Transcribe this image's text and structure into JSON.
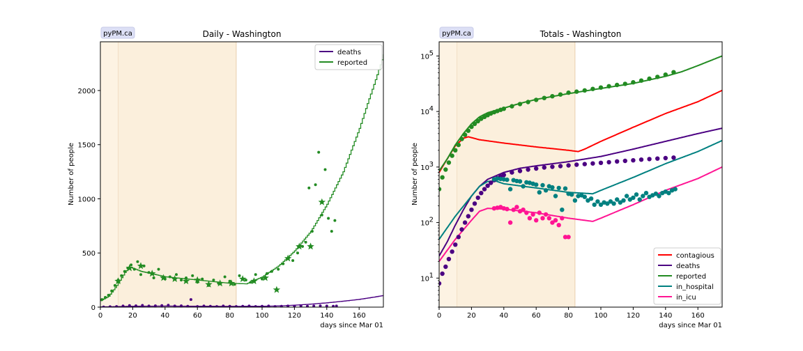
{
  "chart_data": [
    {
      "type": "line",
      "title": "Daily - Washington",
      "badge": "pyPM.ca",
      "xlabel": "days since Mar 01",
      "ylabel": "Number of people",
      "xlim": [
        0,
        175
      ],
      "ylim": [
        0,
        2450
      ],
      "xticks": [
        0,
        20,
        40,
        60,
        80,
        100,
        120,
        140,
        160
      ],
      "yticks": [
        0,
        500,
        1000,
        1500,
        2000
      ],
      "grid": false,
      "legend_position": "top-right",
      "shaded_regions": [
        {
          "from": 0,
          "to": 11,
          "color": "#fdf3e3"
        },
        {
          "from": 11,
          "to": 84,
          "color": "#fbefdc"
        }
      ],
      "colors": {
        "deaths": "#4b0082",
        "reported": "#228b22"
      },
      "series": [
        {
          "name": "deaths",
          "kind": "model-step",
          "x": [
            0,
            20,
            40,
            60,
            80,
            100,
            110,
            120,
            130,
            140,
            150,
            160,
            170,
            175
          ],
          "values": [
            2,
            8,
            10,
            8,
            7,
            8,
            11,
            18,
            28,
            40,
            55,
            72,
            95,
            108
          ]
        },
        {
          "name": "reported",
          "kind": "model-step",
          "x": [
            0,
            5,
            10,
            15,
            18,
            25,
            40,
            60,
            80,
            90,
            100,
            110,
            120,
            130,
            140,
            150,
            160,
            165,
            170,
            175
          ],
          "values": [
            60,
            100,
            200,
            320,
            370,
            330,
            280,
            250,
            220,
            215,
            280,
            380,
            520,
            700,
            950,
            1250,
            1650,
            1880,
            2100,
            2330
          ]
        },
        {
          "name": "reported-daily",
          "kind": "points",
          "x": [
            1,
            3,
            5,
            7,
            9,
            11,
            13,
            15,
            17,
            19,
            21,
            23,
            25,
            27,
            30,
            33,
            36,
            40,
            43,
            47,
            50,
            53,
            57,
            60,
            63,
            67,
            70,
            73,
            77,
            80,
            83,
            86,
            90,
            93,
            96,
            100,
            103,
            106,
            110,
            113,
            116,
            119,
            122,
            125,
            127,
            129,
            131,
            133,
            135,
            137,
            139,
            141,
            143,
            145
          ],
          "values": [
            70,
            90,
            110,
            150,
            200,
            250,
            290,
            330,
            360,
            390,
            350,
            420,
            300,
            380,
            320,
            270,
            350,
            260,
            280,
            300,
            250,
            270,
            290,
            230,
            260,
            200,
            250,
            220,
            280,
            240,
            210,
            290,
            250,
            230,
            300,
            260,
            310,
            330,
            350,
            400,
            450,
            430,
            500,
            560,
            600,
            1100,
            700,
            1130,
            1430,
            850,
            1270,
            820,
            700,
            800
          ]
        },
        {
          "name": "reported-weekly",
          "kind": "stars",
          "x": [
            11,
            18,
            25,
            32,
            39,
            46,
            53,
            60,
            67,
            74,
            81,
            88,
            95,
            102,
            109,
            116,
            123,
            130,
            137
          ],
          "values": [
            240,
            360,
            380,
            310,
            270,
            260,
            240,
            250,
            210,
            220,
            220,
            260,
            240,
            270,
            160,
            450,
            560,
            560,
            970
          ]
        },
        {
          "name": "deaths-daily",
          "kind": "points",
          "x": [
            2,
            6,
            10,
            14,
            18,
            22,
            26,
            30,
            34,
            38,
            42,
            46,
            50,
            54,
            56,
            60,
            64,
            68,
            72,
            76,
            80,
            84,
            88,
            92,
            96,
            100,
            104,
            108,
            112,
            116,
            120,
            124,
            128,
            132,
            136,
            140,
            144,
            146
          ],
          "values": [
            2,
            4,
            6,
            10,
            14,
            12,
            16,
            10,
            12,
            14,
            18,
            10,
            12,
            8,
            70,
            6,
            10,
            8,
            6,
            10,
            8,
            6,
            8,
            10,
            6,
            8,
            10,
            6,
            8,
            10,
            8,
            10,
            8,
            10,
            12,
            10,
            8,
            10
          ]
        }
      ]
    },
    {
      "type": "line",
      "title": "Totals - Washington",
      "badge": "pyPM.ca",
      "xlabel": "days since Mar 01",
      "ylabel": "Number of people",
      "yscale": "log",
      "xlim": [
        0,
        175
      ],
      "ylim": [
        3,
        180000
      ],
      "xticks": [
        0,
        20,
        40,
        60,
        80,
        100,
        120,
        140,
        160
      ],
      "yticks": [
        10,
        100,
        1000,
        10000,
        100000
      ],
      "ytick_labels": [
        {
          "base": "10",
          "exp": "1"
        },
        {
          "base": "10",
          "exp": "2"
        },
        {
          "base": "10",
          "exp": "3"
        },
        {
          "base": "10",
          "exp": "4"
        },
        {
          "base": "10",
          "exp": "5"
        }
      ],
      "grid": false,
      "legend_position": "bottom-right",
      "shaded_regions": [
        {
          "from": 0,
          "to": 11,
          "color": "#fdf3e3"
        },
        {
          "from": 11,
          "to": 84,
          "color": "#fbefdc"
        }
      ],
      "colors": {
        "contagious": "#ff0000",
        "deaths": "#4b0082",
        "reported": "#228b22",
        "in_hospital": "#008080",
        "in_icu": "#ff1493"
      },
      "series": [
        {
          "name": "contagious",
          "kind": "model",
          "x": [
            0,
            5,
            10,
            15,
            18,
            25,
            40,
            60,
            80,
            86,
            90,
            100,
            120,
            140,
            160,
            175
          ],
          "values": [
            800,
            1400,
            2400,
            3300,
            3500,
            3100,
            2700,
            2300,
            2000,
            1900,
            2100,
            2900,
            5200,
            9200,
            15000,
            24000
          ]
        },
        {
          "name": "deaths",
          "kind": "model",
          "x": [
            0,
            5,
            10,
            15,
            20,
            25,
            30,
            40,
            50,
            60,
            80,
            100,
            120,
            140,
            160,
            175
          ],
          "values": [
            25,
            45,
            90,
            170,
            300,
            450,
            600,
            800,
            950,
            1050,
            1250,
            1550,
            2100,
            2900,
            4000,
            5000
          ]
        },
        {
          "name": "reported",
          "kind": "model",
          "x": [
            0,
            5,
            10,
            15,
            20,
            25,
            30,
            40,
            50,
            60,
            80,
            100,
            120,
            140,
            150,
            160,
            175
          ],
          "values": [
            850,
            1400,
            2500,
            4000,
            6000,
            8000,
            9500,
            11500,
            14000,
            16500,
            21000,
            26000,
            32000,
            43000,
            52000,
            67000,
            100000
          ]
        },
        {
          "name": "in_hospital",
          "kind": "model",
          "x": [
            0,
            10,
            20,
            25,
            30,
            35,
            40,
            60,
            80,
            95,
            100,
            120,
            140,
            160,
            175
          ],
          "values": [
            50,
            130,
            300,
            450,
            550,
            560,
            500,
            420,
            350,
            330,
            380,
            650,
            1150,
            1900,
            3000
          ]
        },
        {
          "name": "in_icu",
          "kind": "model",
          "x": [
            0,
            10,
            20,
            25,
            30,
            40,
            60,
            80,
            95,
            100,
            120,
            140,
            160,
            175
          ],
          "values": [
            20,
            50,
            110,
            160,
            180,
            175,
            150,
            120,
            105,
            120,
            210,
            380,
            620,
            1000
          ]
        },
        {
          "name": "reported-data",
          "kind": "points",
          "x": [
            0,
            2,
            4,
            6,
            8,
            10,
            12,
            14,
            16,
            18,
            20,
            22,
            24,
            26,
            28,
            30,
            32,
            34,
            36,
            38,
            40,
            45,
            50,
            55,
            60,
            65,
            70,
            75,
            80,
            85,
            90,
            95,
            100,
            105,
            110,
            115,
            120,
            125,
            130,
            135,
            140,
            145
          ],
          "values": [
            400,
            650,
            900,
            1200,
            1600,
            2000,
            2500,
            3200,
            3800,
            4500,
            5300,
            6000,
            6700,
            7400,
            8000,
            8600,
            9200,
            9700,
            10200,
            10700,
            11200,
            12400,
            13600,
            14800,
            16200,
            17500,
            18800,
            20200,
            21800,
            22800,
            24000,
            25500,
            27000,
            28500,
            30000,
            31500,
            33500,
            36000,
            39000,
            42000,
            46000,
            51000
          ]
        },
        {
          "name": "deaths-data",
          "kind": "points",
          "x": [
            0,
            2,
            4,
            6,
            8,
            10,
            12,
            14,
            16,
            18,
            20,
            22,
            24,
            26,
            28,
            30,
            32,
            34,
            36,
            38,
            40,
            45,
            50,
            55,
            60,
            65,
            70,
            75,
            80,
            85,
            90,
            95,
            100,
            105,
            110,
            115,
            120,
            125,
            130,
            135,
            140,
            145
          ],
          "values": [
            8,
            12,
            16,
            22,
            30,
            40,
            55,
            75,
            100,
            130,
            170,
            220,
            280,
            340,
            400,
            460,
            520,
            580,
            630,
            680,
            720,
            800,
            850,
            900,
            940,
            980,
            1010,
            1040,
            1070,
            1100,
            1130,
            1160,
            1190,
            1220,
            1260,
            1290,
            1320,
            1360,
            1390,
            1420,
            1450,
            1480
          ]
        },
        {
          "name": "in_hospital-data",
          "kind": "points",
          "x": [
            34,
            36,
            38,
            40,
            42,
            44,
            46,
            48,
            50,
            52,
            54,
            56,
            58,
            60,
            62,
            64,
            66,
            68,
            70,
            72,
            74,
            76,
            78,
            80,
            82,
            84,
            86,
            88,
            90,
            92,
            94,
            96,
            98,
            100,
            102,
            104,
            106,
            108,
            110,
            112,
            114,
            116,
            118,
            120,
            122,
            124,
            126,
            128,
            130,
            132,
            134,
            136,
            138,
            140,
            142,
            144,
            146
          ],
          "values": [
            600,
            620,
            610,
            600,
            590,
            400,
            580,
            560,
            550,
            450,
            530,
            520,
            500,
            480,
            350,
            470,
            380,
            450,
            430,
            300,
            420,
            170,
            410,
            330,
            320,
            250,
            300,
            310,
            290,
            250,
            270,
            210,
            240,
            210,
            230,
            220,
            240,
            220,
            260,
            230,
            250,
            300,
            260,
            280,
            320,
            260,
            300,
            340,
            290,
            310,
            330,
            300,
            340,
            360,
            340,
            380,
            400
          ]
        },
        {
          "name": "in_icu-data",
          "kind": "points",
          "x": [
            34,
            36,
            38,
            40,
            42,
            44,
            46,
            48,
            50,
            52,
            54,
            56,
            58,
            60,
            62,
            64,
            66,
            68,
            70,
            72,
            74,
            76,
            78,
            80
          ],
          "values": [
            180,
            185,
            190,
            180,
            175,
            100,
            170,
            190,
            160,
            170,
            150,
            120,
            140,
            110,
            150,
            120,
            140,
            120,
            100,
            110,
            90,
            120,
            55,
            55
          ]
        }
      ],
      "legend": [
        "contagious",
        "deaths",
        "reported",
        "in_hospital",
        "in_icu"
      ]
    }
  ]
}
